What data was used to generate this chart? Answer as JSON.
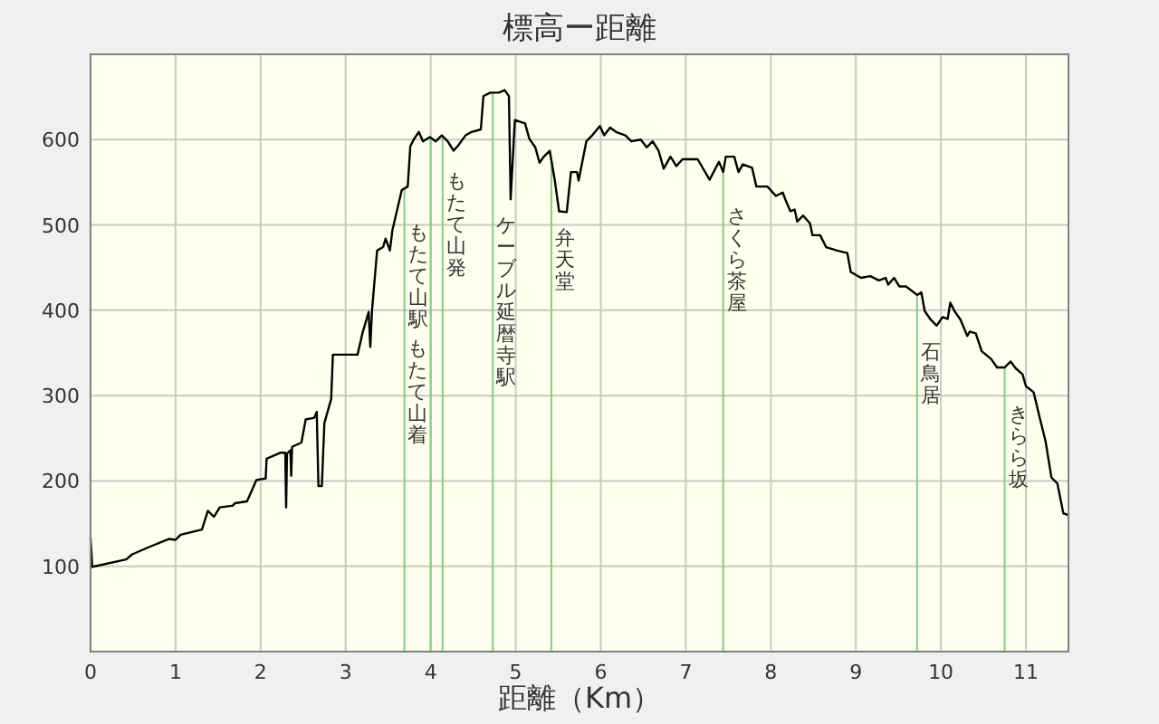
{
  "chart_data": {
    "type": "line",
    "title": "標高ー距離",
    "xlabel": "距離（Km）",
    "x": [
      0,
      0.02,
      0.05,
      0.42,
      0.49,
      0.7,
      0.92,
      1.0,
      1.06,
      1.31,
      1.38,
      1.45,
      1.52,
      1.67,
      1.7,
      1.84,
      1.95,
      2.06,
      2.07,
      2.23,
      2.29,
      2.3,
      2.31,
      2.35,
      2.36,
      2.37,
      2.48,
      2.53,
      2.63,
      2.66,
      2.68,
      2.72,
      2.75,
      2.83,
      2.85,
      3.14,
      3.2,
      3.27,
      3.29,
      3.31,
      3.37,
      3.44,
      3.47,
      3.52,
      3.55,
      3.66,
      3.73,
      3.76,
      3.8,
      3.86,
      3.91,
      3.99,
      4.06,
      4.13,
      4.2,
      4.27,
      4.33,
      4.41,
      4.48,
      4.59,
      4.62,
      4.7,
      4.8,
      4.87,
      4.92,
      4.94,
      4.99,
      5.11,
      5.16,
      5.23,
      5.28,
      5.33,
      5.4,
      5.46,
      5.51,
      5.6,
      5.65,
      5.72,
      5.74,
      5.83,
      5.9,
      5.99,
      6.04,
      6.11,
      6.18,
      6.29,
      6.36,
      6.47,
      6.54,
      6.61,
      6.68,
      6.74,
      6.82,
      6.89,
      6.96,
      7.03,
      7.14,
      7.28,
      7.39,
      7.44,
      7.47,
      7.57,
      7.62,
      7.67,
      7.78,
      7.83,
      7.96,
      8.06,
      8.14,
      8.17,
      8.23,
      8.28,
      8.31,
      8.38,
      8.46,
      8.49,
      8.58,
      8.65,
      8.78,
      8.9,
      8.94,
      9.06,
      9.17,
      9.27,
      9.35,
      9.38,
      9.45,
      9.51,
      9.59,
      9.72,
      9.77,
      9.81,
      9.88,
      9.95,
      10.02,
      10.08,
      10.11,
      10.16,
      10.23,
      10.31,
      10.34,
      10.41,
      10.48,
      10.59,
      10.66,
      10.75,
      10.82,
      10.88,
      10.96,
      11.0,
      11.09,
      11.16,
      11.23,
      11.3,
      11.37,
      11.44,
      11.5
    ],
    "series": [
      {
        "color": "#000000",
        "values": [
          133,
          99,
          100,
          108,
          114,
          123,
          132,
          131,
          137,
          143,
          165,
          158,
          169,
          171,
          174,
          176,
          201,
          203,
          226,
          233,
          233,
          169,
          232,
          236,
          206,
          240,
          245,
          272,
          274,
          281,
          194,
          194,
          268,
          296,
          348,
          348,
          374,
          398,
          357,
          400,
          470,
          474,
          484,
          470,
          494,
          541,
          545,
          592,
          600,
          609,
          598,
          603,
          598,
          605,
          598,
          587,
          594,
          605,
          609,
          612,
          651,
          655,
          655,
          658,
          651,
          530,
          623,
          619,
          601,
          591,
          573,
          580,
          587,
          552,
          516,
          515,
          562,
          562,
          552,
          598,
          605,
          616,
          605,
          614,
          609,
          605,
          598,
          600,
          591,
          598,
          587,
          566,
          580,
          569,
          577,
          577,
          577,
          553,
          574,
          562,
          580,
          580,
          562,
          571,
          567,
          545,
          545,
          534,
          538,
          530,
          516,
          518,
          504,
          511,
          502,
          488,
          488,
          474,
          470,
          467,
          445,
          438,
          440,
          435,
          438,
          430,
          438,
          428,
          428,
          418,
          421,
          399,
          389,
          382,
          392,
          390,
          409,
          399,
          389,
          370,
          375,
          373,
          352,
          343,
          333,
          333,
          340,
          332,
          325,
          311,
          304,
          275,
          247,
          204,
          197,
          162,
          160
        ]
      }
    ],
    "xlim": [
      0,
      11.5
    ],
    "ylim": [
      0,
      700
    ],
    "xticks": [
      0,
      1,
      2,
      3,
      4,
      5,
      6,
      7,
      8,
      9,
      10,
      11
    ],
    "yticks": [
      100,
      200,
      300,
      400,
      500,
      600
    ],
    "grid": true,
    "ref_lines": [
      {
        "axis": "x",
        "value": 3.69,
        "label": "もたて山駅",
        "color": "#80d080"
      },
      {
        "axis": "x",
        "value": 4.0,
        "label": "もたて山着",
        "color": "#80d080"
      },
      {
        "axis": "x",
        "value": 4.14,
        "label": "もたて山発",
        "color": "#80d080"
      },
      {
        "axis": "x",
        "value": 4.73,
        "label": "ケーブル延暦寺駅",
        "color": "#80d080"
      },
      {
        "axis": "x",
        "value": 5.42,
        "label": "弁天堂",
        "color": "#80d080"
      },
      {
        "axis": "x",
        "value": 7.44,
        "label": "さくら茶屋",
        "color": "#80d080"
      },
      {
        "axis": "x",
        "value": 9.72,
        "label": "石鳥居",
        "color": "#80d080"
      },
      {
        "axis": "x",
        "value": 10.75,
        "label": "きらら坂",
        "color": "#80d080"
      }
    ]
  }
}
